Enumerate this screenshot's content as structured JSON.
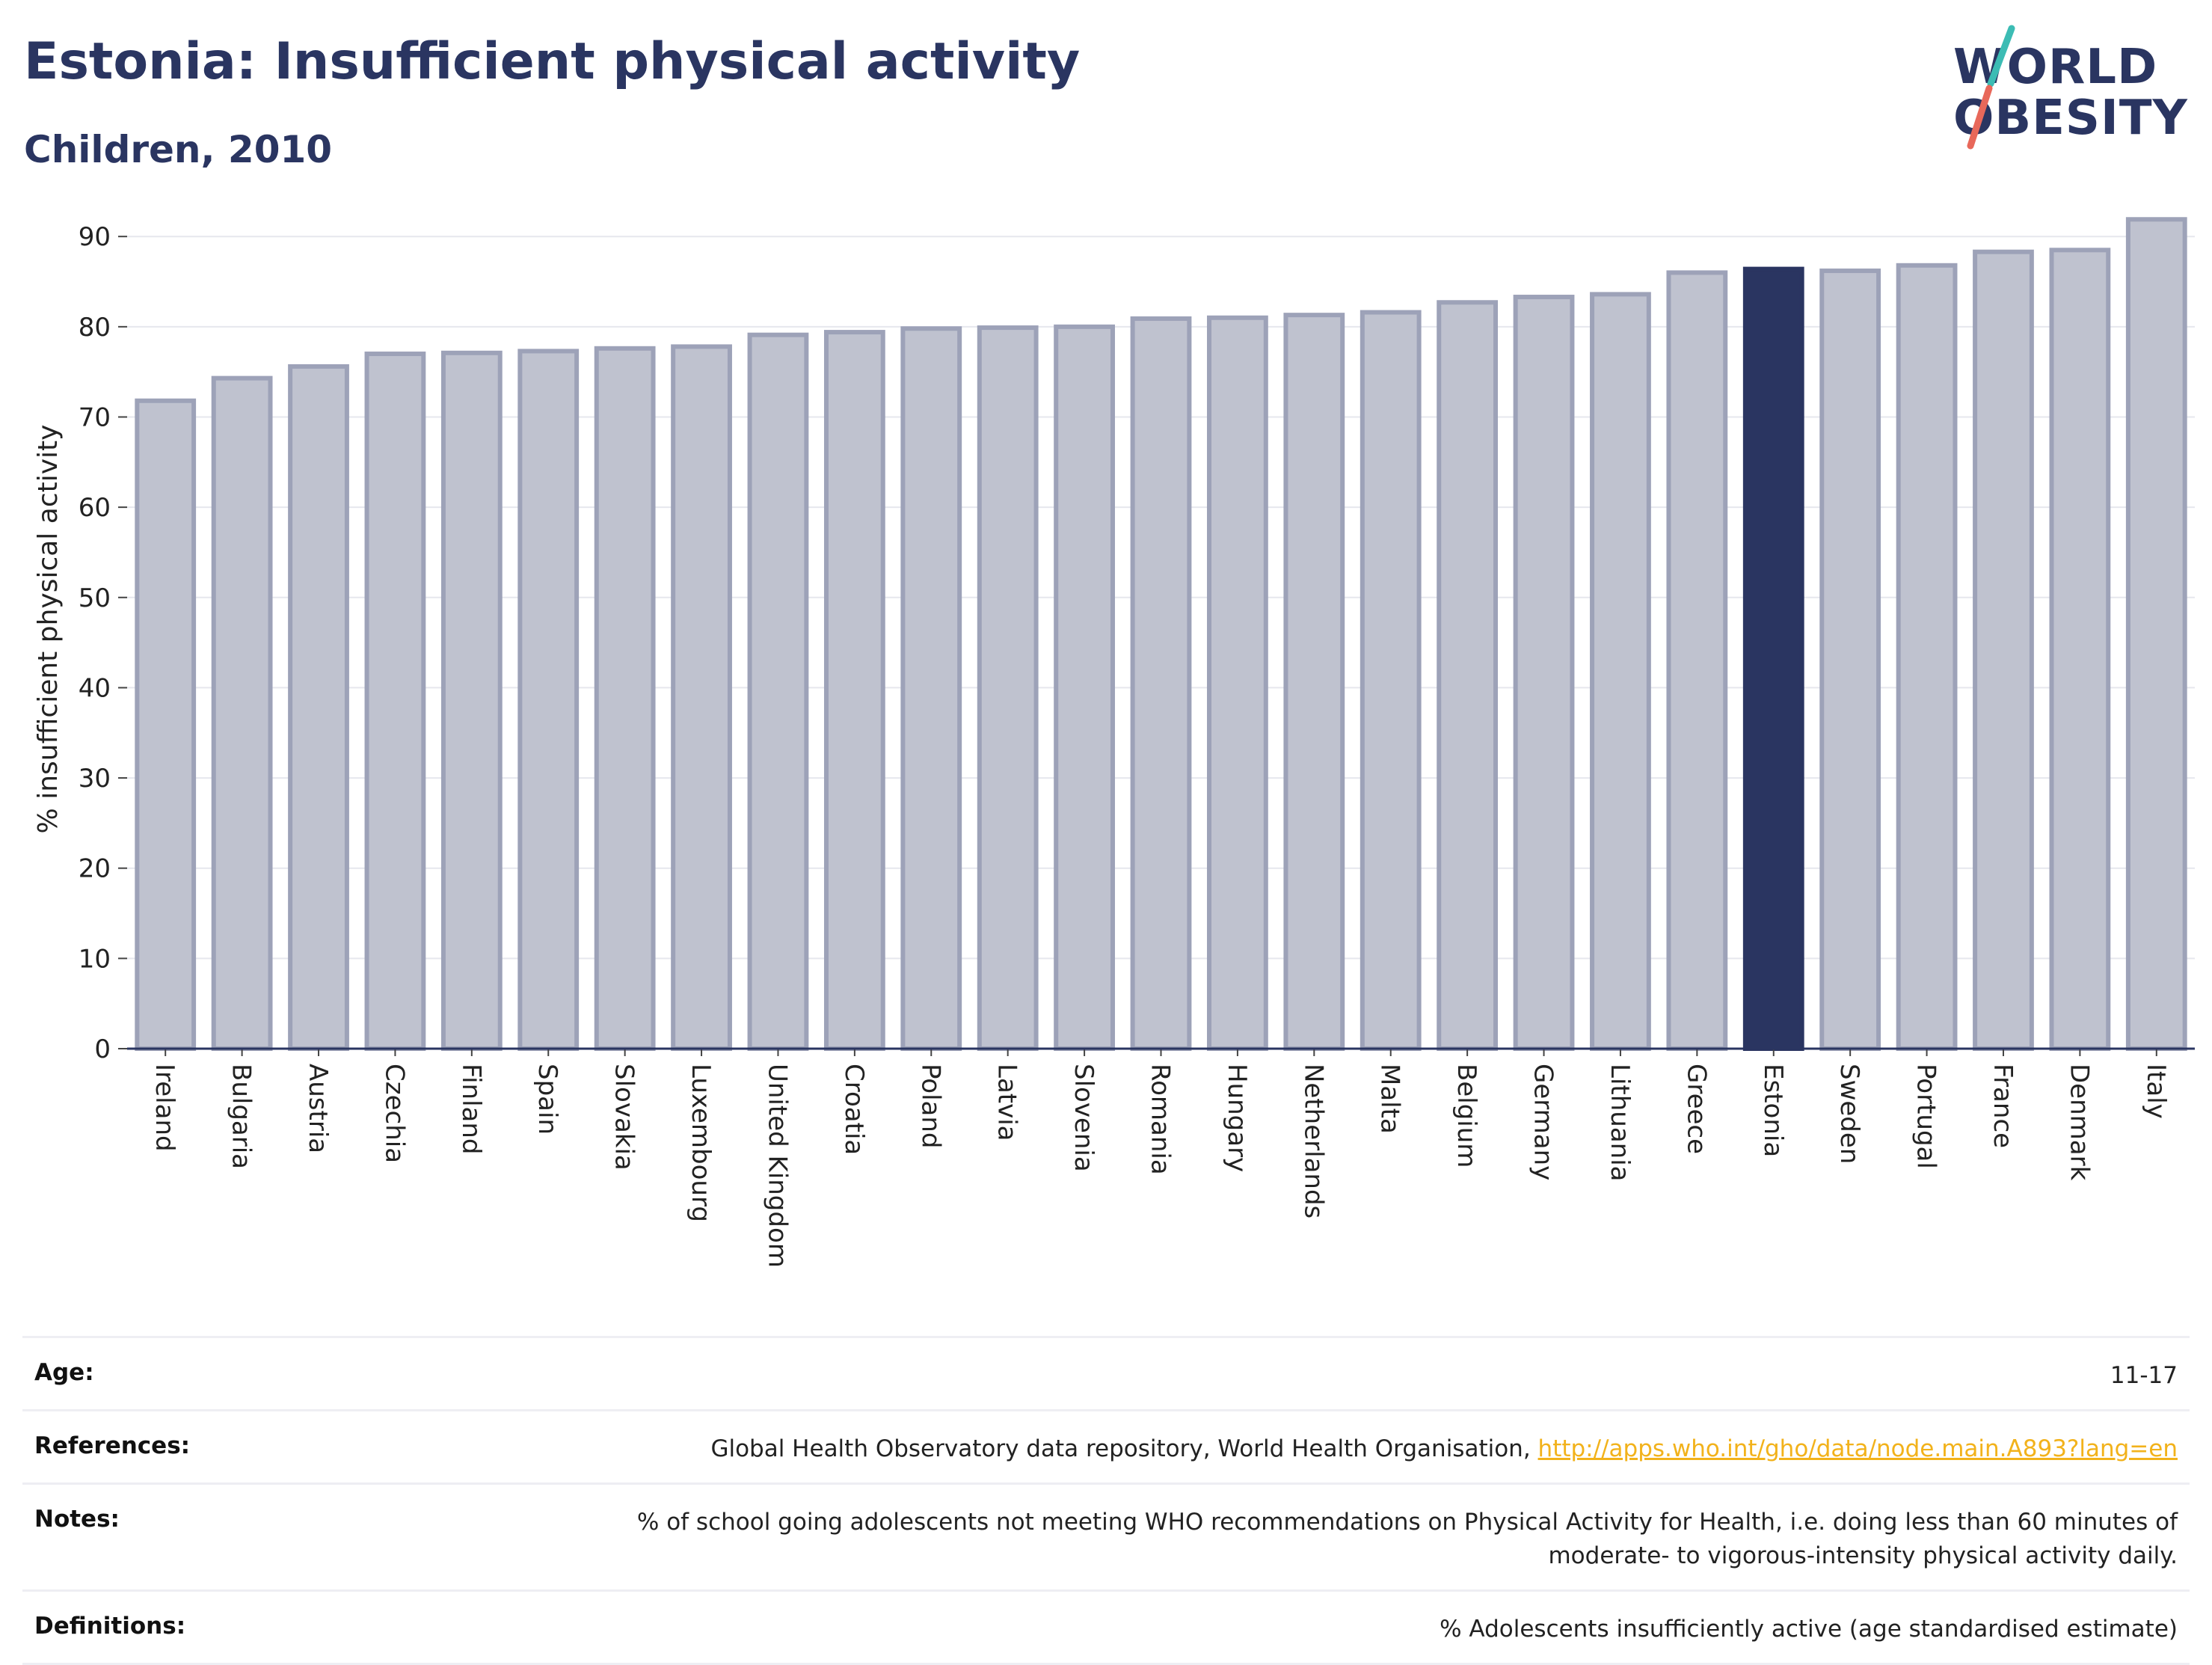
{
  "header": {
    "title": "Estonia: Insufficient physical activity",
    "subtitle": "Children, 2010",
    "logo_line1": "WORLD",
    "logo_line2": "OBESITY"
  },
  "colors": {
    "title": "#2a3561",
    "highlight_bar": "#2a3561",
    "default_bar": "#bfc2cf",
    "default_bar_edge": "#9da2b8",
    "logo_teal": "#3cbcb4",
    "logo_red": "#e8685a",
    "link": "#f2b21b"
  },
  "chart_data": {
    "type": "bar",
    "title": "Estonia: Insufficient physical activity",
    "subtitle": "Children, 2010",
    "xlabel": "",
    "ylabel": "% insufficient physical activity",
    "ylim": [
      0,
      93
    ],
    "yticks": [
      0,
      10,
      20,
      30,
      40,
      50,
      60,
      70,
      80,
      90
    ],
    "grid": true,
    "highlight": "Estonia",
    "categories": [
      "Ireland",
      "Bulgaria",
      "Austria",
      "Czechia",
      "Finland",
      "Spain",
      "Slovakia",
      "Luxembourg",
      "United Kingdom",
      "Croatia",
      "Poland",
      "Latvia",
      "Slovenia",
      "Romania",
      "Hungary",
      "Netherlands",
      "Malta",
      "Belgium",
      "Germany",
      "Lithuania",
      "Greece",
      "Estonia",
      "Sweden",
      "Portugal",
      "France",
      "Denmark",
      "Italy"
    ],
    "values": [
      71.8,
      74.3,
      75.6,
      77.0,
      77.1,
      77.3,
      77.6,
      77.8,
      79.1,
      79.4,
      79.8,
      79.9,
      80.0,
      80.9,
      81.0,
      81.3,
      81.6,
      82.7,
      83.3,
      83.6,
      86.0,
      86.4,
      86.2,
      86.8,
      88.3,
      88.5,
      91.9
    ]
  },
  "info": {
    "age_label": "Age:",
    "age_value": "11-17",
    "references_label": "References:",
    "references_text": "Global Health Observatory data repository, World Health Organisation, ",
    "references_link": "http://apps.who.int/gho/data/node.main.A893?lang=en",
    "notes_label": "Notes:",
    "notes_line1": "% of school going adolescents not meeting WHO recommendations on Physical Activity for Health, i.e. doing less than 60 minutes of",
    "notes_line2": "moderate- to vigorous-intensity physical activity daily.",
    "definitions_label": "Definitions:",
    "definitions_value": "% Adolescents insufficiently active (age standardised estimate)"
  }
}
